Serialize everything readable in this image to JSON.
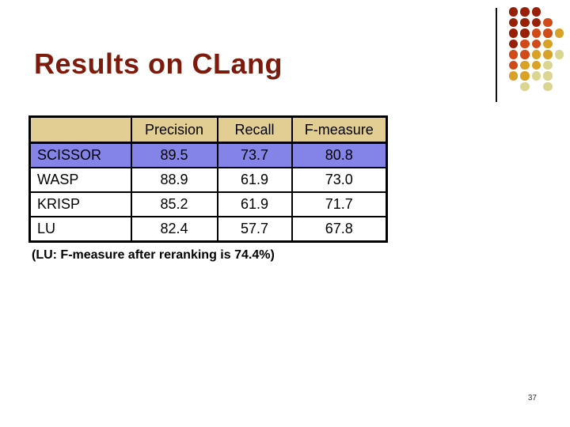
{
  "slide": {
    "title": "Results on CLang",
    "title_color": "#7d1a0b",
    "note": "(LU: F-measure after reranking is 74.4%)",
    "page_number": "37"
  },
  "table": {
    "columns": [
      "",
      "Precision",
      "Recall",
      "F-measure"
    ],
    "rows": [
      {
        "label": "SCISSOR",
        "values": [
          "89.5",
          "73.7",
          "80.8"
        ],
        "highlight": true
      },
      {
        "label": "WASP",
        "values": [
          "88.9",
          "61.9",
          "73.0"
        ],
        "highlight": false
      },
      {
        "label": "KRISP",
        "values": [
          "85.2",
          "61.9",
          "71.7"
        ],
        "highlight": false
      },
      {
        "label": "LU",
        "values": [
          "82.4",
          "57.7",
          "67.8"
        ],
        "highlight": false
      }
    ],
    "header_bg": "#e2ce92",
    "highlight_bg": "#8484e8"
  },
  "decoration": {
    "colors": {
      "darkred": "#992008",
      "orangered": "#d24a18",
      "gold": "#d9a125",
      "pale": "#dbd592"
    },
    "dot_grid": [
      [
        "darkred",
        "darkred",
        "darkred",
        null,
        null
      ],
      [
        "darkred",
        "darkred",
        "darkred",
        "orangered",
        null
      ],
      [
        "darkred",
        "darkred",
        "orangered",
        "orangered",
        "gold"
      ],
      [
        "darkred",
        "orangered",
        "orangered",
        "gold",
        null
      ],
      [
        "orangered",
        "orangered",
        "gold",
        "gold",
        "pale"
      ],
      [
        "orangered",
        "gold",
        "gold",
        "pale",
        null
      ],
      [
        "gold",
        "gold",
        "pale",
        "pale",
        null
      ],
      [
        null,
        "pale",
        null,
        "pale",
        null
      ]
    ]
  }
}
